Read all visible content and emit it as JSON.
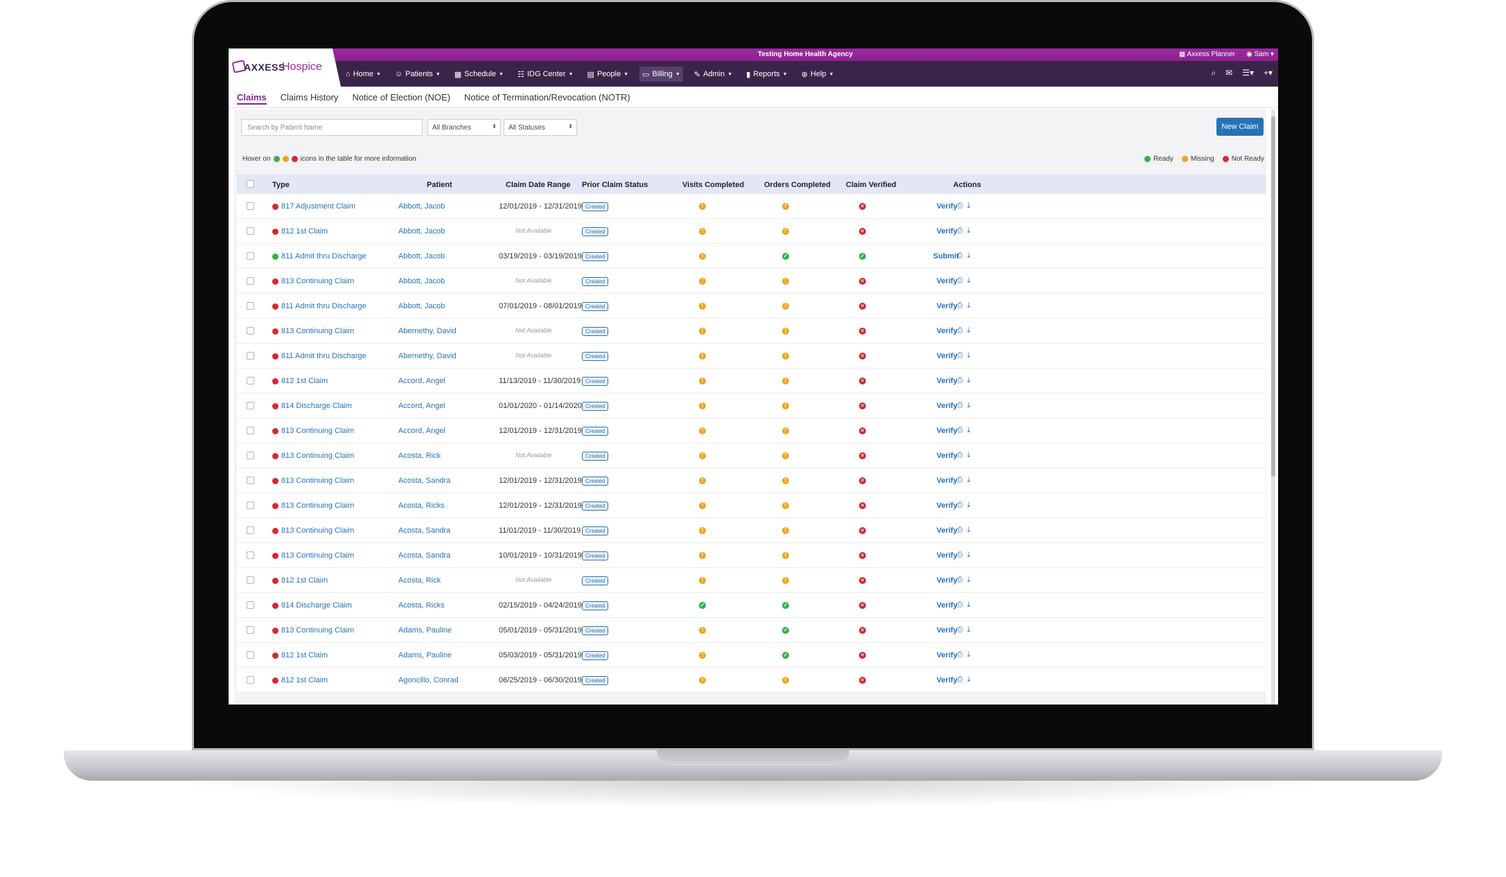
{
  "header": {
    "agency": "Testing Home Health Agency",
    "planner": "Axxess Planner",
    "user": "Sam",
    "logo_part1": "AXXESS",
    "logo_part2": "Hospice"
  },
  "nav": [
    {
      "label": "Home",
      "icon": "home-icon"
    },
    {
      "label": "Patients",
      "icon": "user-icon"
    },
    {
      "label": "Schedule",
      "icon": "calendar-icon"
    },
    {
      "label": "IDG Center",
      "icon": "group-icon"
    },
    {
      "label": "People",
      "icon": "id-card-icon"
    },
    {
      "label": "Billing",
      "icon": "money-icon"
    },
    {
      "label": "Admin",
      "icon": "wrench-icon"
    },
    {
      "label": "Reports",
      "icon": "bar-chart-icon"
    },
    {
      "label": "Help",
      "icon": "lifebuoy-icon"
    }
  ],
  "tabs": [
    "Claims",
    "Claims History",
    "Notice of Election (NOE)",
    "Notice of Termination/Revocation (NOTR)"
  ],
  "filters": {
    "search_placeholder": "Search by Patient Name",
    "branches": "All Branches",
    "statuses": "All Statuses",
    "new_claim": "New Claim"
  },
  "hint": {
    "prefix": "Hover on",
    "suffix": "icons in the table for more information"
  },
  "legend": {
    "ready": "Ready",
    "missing": "Missing",
    "not_ready": "Not Ready"
  },
  "columns": {
    "type": "Type",
    "patient": "Patient",
    "date_range": "Claim Date Range",
    "prior_status": "Prior Claim Status",
    "visits": "Visits Completed",
    "orders": "Orders Completed",
    "verified": "Claim Verified",
    "actions": "Actions"
  },
  "rows": [
    {
      "dot": "red",
      "type": "817 Adjustment Claim",
      "patient": "Abbott, Jacob",
      "range": "12/01/2019 - 12/31/2019",
      "prior": "Created",
      "visits": "missing",
      "orders": "missing",
      "verified": "notready",
      "action": "Verify"
    },
    {
      "dot": "red",
      "type": "812 1st Claim",
      "patient": "Abbott, Jacob",
      "range": "Not Available",
      "prior": "Created",
      "visits": "missing",
      "orders": "missing",
      "verified": "notready",
      "action": "Verify"
    },
    {
      "dot": "green",
      "type": "811 Admit thru Discharge",
      "patient": "Abbott, Jacob",
      "range": "03/19/2019 - 03/19/2019",
      "prior": "Created",
      "visits": "missing",
      "orders": "ready",
      "verified": "ready",
      "action": "Submit"
    },
    {
      "dot": "red",
      "type": "813 Continuing Claim",
      "patient": "Abbott, Jacob",
      "range": "Not Available",
      "prior": "Created",
      "visits": "missing",
      "orders": "missing",
      "verified": "notready",
      "action": "Verify"
    },
    {
      "dot": "red",
      "type": "811 Admit thru Discharge",
      "patient": "Abbott, Jacob",
      "range": "07/01/2019 - 08/01/2019",
      "prior": "Created",
      "visits": "missing",
      "orders": "missing",
      "verified": "notready",
      "action": "Verify"
    },
    {
      "dot": "red",
      "type": "813 Continuing Claim",
      "patient": "Abernethy, David",
      "range": "Not Available",
      "prior": "Created",
      "visits": "missing",
      "orders": "missing",
      "verified": "notready",
      "action": "Verify"
    },
    {
      "dot": "red",
      "type": "811 Admit thru Discharge",
      "patient": "Abernethy, David",
      "range": "Not Available",
      "prior": "Created",
      "visits": "missing",
      "orders": "missing",
      "verified": "notready",
      "action": "Verify"
    },
    {
      "dot": "red",
      "type": "812 1st Claim",
      "patient": "Accord, Angel",
      "range": "11/13/2019 - 11/30/2019",
      "prior": "Created",
      "visits": "missing",
      "orders": "missing",
      "verified": "notready",
      "action": "Verify"
    },
    {
      "dot": "red",
      "type": "814 Discharge Claim",
      "patient": "Accord, Angel",
      "range": "01/01/2020 - 01/14/2020",
      "prior": "Created",
      "visits": "missing",
      "orders": "missing",
      "verified": "notready",
      "action": "Verify"
    },
    {
      "dot": "red",
      "type": "813 Continuing Claim",
      "patient": "Accord, Angel",
      "range": "12/01/2019 - 12/31/2019",
      "prior": "Created",
      "visits": "missing",
      "orders": "missing",
      "verified": "notready",
      "action": "Verify"
    },
    {
      "dot": "red",
      "type": "813 Continuing Claim",
      "patient": "Acosta, Rick",
      "range": "Not Available",
      "prior": "Created",
      "visits": "missing",
      "orders": "missing",
      "verified": "notready",
      "action": "Verify"
    },
    {
      "dot": "red",
      "type": "813 Continuing Claim",
      "patient": "Acosta, Sandra",
      "range": "12/01/2019 - 12/31/2019",
      "prior": "Created",
      "visits": "missing",
      "orders": "missing",
      "verified": "notready",
      "action": "Verify"
    },
    {
      "dot": "red",
      "type": "813 Continuing Claim",
      "patient": "Acosta, Ricks",
      "range": "12/01/2019 - 12/31/2019",
      "prior": "Created",
      "visits": "missing",
      "orders": "missing",
      "verified": "notready",
      "action": "Verify"
    },
    {
      "dot": "red",
      "type": "813 Continuing Claim",
      "patient": "Acosta, Sandra",
      "range": "11/01/2019 - 11/30/2019",
      "prior": "Created",
      "visits": "missing",
      "orders": "missing",
      "verified": "notready",
      "action": "Verify"
    },
    {
      "dot": "red",
      "type": "813 Continuing Claim",
      "patient": "Acosta, Sandra",
      "range": "10/01/2019 - 10/31/2019",
      "prior": "Created",
      "visits": "missing",
      "orders": "missing",
      "verified": "notready",
      "action": "Verify"
    },
    {
      "dot": "red",
      "type": "812 1st Claim",
      "patient": "Acosta, Rick",
      "range": "Not Available",
      "prior": "Created",
      "visits": "missing",
      "orders": "missing",
      "verified": "notready",
      "action": "Verify"
    },
    {
      "dot": "red",
      "type": "814 Discharge Claim",
      "patient": "Acosta, Ricks",
      "range": "02/15/2019 - 04/24/2019",
      "prior": "Created",
      "visits": "ready",
      "orders": "ready",
      "verified": "notready",
      "action": "Verify"
    },
    {
      "dot": "red",
      "type": "813 Continuing Claim",
      "patient": "Adams, Pauline",
      "range": "05/01/2019 - 05/31/2019",
      "prior": "Created",
      "visits": "missing",
      "orders": "ready",
      "verified": "notready",
      "action": "Verify"
    },
    {
      "dot": "red",
      "type": "812 1st Claim",
      "patient": "Adams, Pauline",
      "range": "05/03/2019 - 05/31/2019",
      "prior": "Created",
      "visits": "missing",
      "orders": "ready",
      "verified": "notready",
      "action": "Verify"
    },
    {
      "dot": "red",
      "type": "812 1st Claim",
      "patient": "Agoncillo, Conrad",
      "range": "06/25/2019 - 06/30/2019",
      "prior": "Created",
      "visits": "missing",
      "orders": "missing",
      "verified": "notready",
      "action": "Verify"
    }
  ],
  "colors": {
    "ready": "#2fb344",
    "missing": "#f0a419",
    "not_ready": "#d9272e",
    "link": "#2672b7",
    "brand": "#8a2290"
  }
}
